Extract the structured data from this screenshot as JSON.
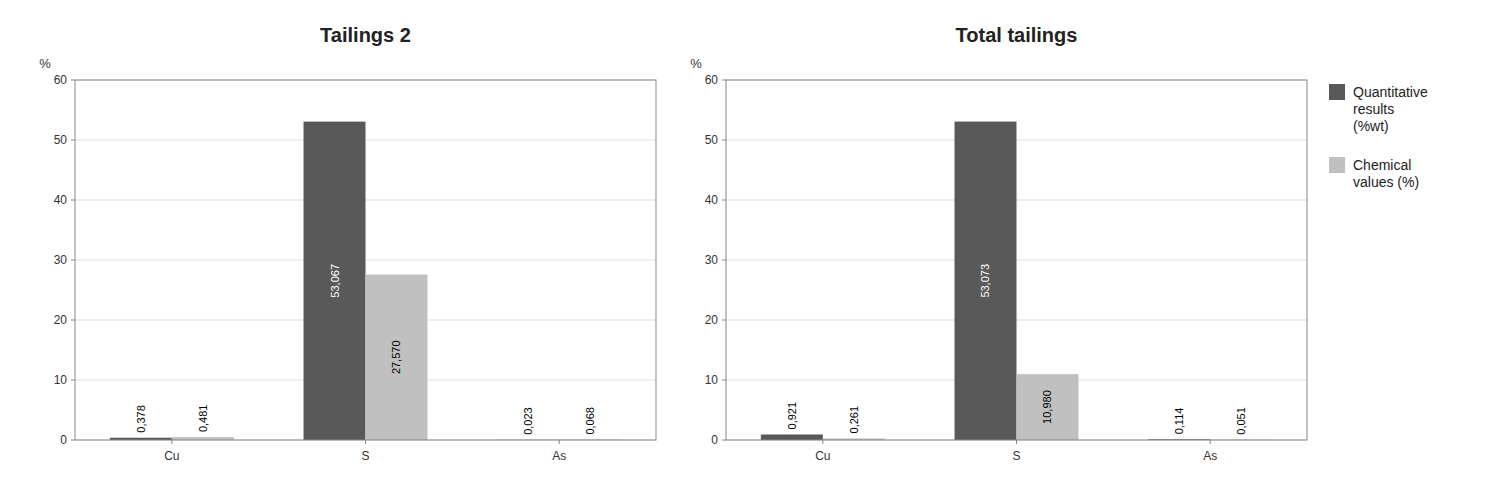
{
  "chart_data": [
    {
      "type": "bar",
      "title": "Tailings 2",
      "categories": [
        "Cu",
        "S",
        "As"
      ],
      "series": [
        {
          "color": "#595959",
          "values": [
            0.378,
            53.067,
            0.023
          ],
          "value_labels": [
            "0,378",
            "53,067",
            "0,023"
          ]
        },
        {
          "color": "#c0c0c0",
          "values": [
            0.481,
            27.57,
            0.068
          ],
          "value_labels": [
            "0,481",
            "27,570",
            "0,068"
          ]
        }
      ],
      "ylim": [
        0,
        60
      ],
      "yticks": [
        0,
        10,
        20,
        30,
        40,
        50,
        60
      ],
      "ylabel": "%",
      "grid": true,
      "data_labels": true
    },
    {
      "type": "bar",
      "title": "Total tailings",
      "categories": [
        "Cu",
        "S",
        "As"
      ],
      "series": [
        {
          "name": "Quantitative\nresults\n(%wt)",
          "color": "#595959",
          "values": [
            0.921,
            53.073,
            0.114
          ],
          "value_labels": [
            "0,921",
            "53,073",
            "0,114"
          ]
        },
        {
          "name": "Chemical\nvalues (%)",
          "color": "#c0c0c0",
          "values": [
            0.261,
            10.98,
            0.051
          ],
          "value_labels": [
            "0,261",
            "10,980",
            "0,051"
          ]
        }
      ],
      "ylim": [
        0,
        60
      ],
      "yticks": [
        0,
        10,
        20,
        30,
        40,
        50,
        60
      ],
      "ylabel": "%",
      "grid": true,
      "data_labels": true,
      "legend": "right"
    }
  ]
}
